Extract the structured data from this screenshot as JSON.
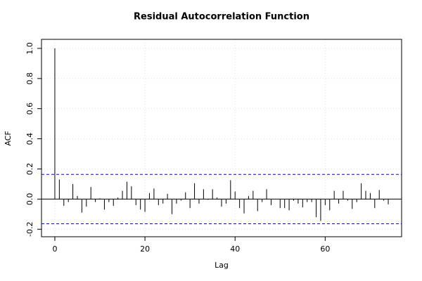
{
  "chart_data": {
    "type": "acf",
    "title": "Residual Autocorrelation Function",
    "xlabel": "Lag",
    "ylabel": "ACF",
    "x": [
      0,
      1,
      2,
      3,
      4,
      5,
      6,
      7,
      8,
      9,
      10,
      11,
      12,
      13,
      14,
      15,
      16,
      17,
      18,
      19,
      20,
      21,
      22,
      23,
      24,
      25,
      26,
      27,
      28,
      29,
      30,
      31,
      32,
      33,
      34,
      35,
      36,
      37,
      38,
      39,
      40,
      41,
      42,
      43,
      44,
      45,
      46,
      47,
      48,
      49,
      50,
      51,
      52,
      53,
      54,
      55,
      56,
      57,
      58,
      59,
      60,
      61,
      62,
      63,
      64,
      65,
      66,
      67,
      68,
      69,
      70,
      71,
      72,
      73,
      74
    ],
    "values": [
      1.0,
      0.13,
      -0.045,
      -0.02,
      0.1,
      0.02,
      -0.09,
      -0.05,
      0.08,
      -0.02,
      0.005,
      -0.07,
      -0.02,
      -0.045,
      0.01,
      0.055,
      0.115,
      0.085,
      -0.04,
      -0.07,
      -0.085,
      0.04,
      0.07,
      -0.04,
      -0.03,
      0.035,
      -0.1,
      -0.03,
      -0.01,
      0.045,
      -0.06,
      0.105,
      -0.03,
      0.065,
      -0.005,
      0.065,
      0.01,
      -0.05,
      -0.03,
      0.125,
      0.05,
      -0.06,
      -0.095,
      0.02,
      0.055,
      -0.08,
      -0.02,
      0.065,
      -0.04,
      0.0,
      -0.06,
      -0.06,
      -0.075,
      -0.01,
      -0.03,
      -0.055,
      -0.02,
      -0.02,
      -0.12,
      -0.145,
      -0.04,
      -0.075,
      0.055,
      -0.03,
      0.055,
      -0.01,
      -0.065,
      -0.02,
      0.105,
      0.055,
      0.04,
      -0.06,
      0.06,
      -0.01,
      -0.035
    ],
    "color": "#000000",
    "conf_limits": [
      0.164,
      -0.164
    ],
    "conf_color": "#0000ff",
    "xlim": [
      -2.96,
      76.96
    ],
    "ylim": [
      -0.25,
      1.06
    ],
    "xticks": [
      0,
      20,
      40,
      60
    ],
    "yticks": [
      -0.2,
      {
        "value": 0,
        "label": "0.0"
      },
      0.2,
      0.4,
      0.6,
      0.8,
      {
        "value": 1,
        "label": "1.0"
      }
    ],
    "grid": true
  }
}
